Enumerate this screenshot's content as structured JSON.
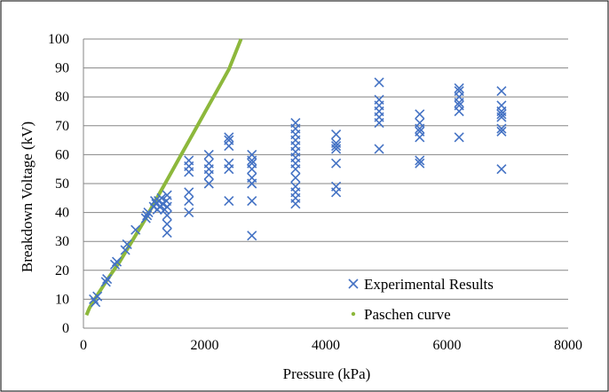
{
  "chart_data": {
    "type": "scatter",
    "title": "",
    "xlabel": "Pressure (kPa)",
    "ylabel": "Breakdown Voltage (kV)",
    "xlim": [
      0,
      8000
    ],
    "ylim": [
      0,
      100
    ],
    "x_ticks": [
      0,
      2000,
      4000,
      6000,
      8000
    ],
    "y_ticks": [
      0,
      10,
      20,
      30,
      40,
      50,
      60,
      70,
      80,
      90,
      100
    ],
    "grid": "horizontal",
    "legend_position": "bottom-right",
    "series": [
      {
        "name": "Experimental Results",
        "marker": "x",
        "color": "#4472C4",
        "points": [
          [
            170,
            10
          ],
          [
            200,
            9
          ],
          [
            230,
            11
          ],
          [
            370,
            16
          ],
          [
            390,
            17
          ],
          [
            520,
            22
          ],
          [
            550,
            23
          ],
          [
            690,
            27
          ],
          [
            720,
            29
          ],
          [
            860,
            34
          ],
          [
            1030,
            38
          ],
          [
            1050,
            39
          ],
          [
            1070,
            40
          ],
          [
            1160,
            42
          ],
          [
            1180,
            44
          ],
          [
            1200,
            43
          ],
          [
            1220,
            41
          ],
          [
            1240,
            44
          ],
          [
            1260,
            42
          ],
          [
            1290,
            45
          ],
          [
            1310,
            43
          ],
          [
            1340,
            41
          ],
          [
            1370,
            44
          ],
          [
            1380,
            46
          ],
          [
            1380,
            42
          ],
          [
            1380,
            39
          ],
          [
            1380,
            36
          ],
          [
            1380,
            33
          ],
          [
            1740,
            58
          ],
          [
            1740,
            56
          ],
          [
            1740,
            54
          ],
          [
            1740,
            47
          ],
          [
            1740,
            44
          ],
          [
            1740,
            40
          ],
          [
            2070,
            60
          ],
          [
            2070,
            57
          ],
          [
            2070,
            55
          ],
          [
            2070,
            53
          ],
          [
            2070,
            50
          ],
          [
            2400,
            66
          ],
          [
            2400,
            65
          ],
          [
            2400,
            63
          ],
          [
            2400,
            57
          ],
          [
            2400,
            55
          ],
          [
            2400,
            44
          ],
          [
            2780,
            60
          ],
          [
            2780,
            58
          ],
          [
            2780,
            57
          ],
          [
            2780,
            55
          ],
          [
            2780,
            52
          ],
          [
            2780,
            50
          ],
          [
            2780,
            44
          ],
          [
            2780,
            32
          ],
          [
            3500,
            71
          ],
          [
            3500,
            69
          ],
          [
            3500,
            67
          ],
          [
            3500,
            65
          ],
          [
            3500,
            63
          ],
          [
            3500,
            61
          ],
          [
            3500,
            59
          ],
          [
            3500,
            57
          ],
          [
            3500,
            55
          ],
          [
            3500,
            52
          ],
          [
            3500,
            49
          ],
          [
            3500,
            47
          ],
          [
            3500,
            45
          ],
          [
            3500,
            43
          ],
          [
            4170,
            67
          ],
          [
            4170,
            64
          ],
          [
            4170,
            63
          ],
          [
            4170,
            62
          ],
          [
            4170,
            57
          ],
          [
            4170,
            49
          ],
          [
            4170,
            47
          ],
          [
            4880,
            85
          ],
          [
            4880,
            79
          ],
          [
            4880,
            77
          ],
          [
            4880,
            75
          ],
          [
            4880,
            73
          ],
          [
            4880,
            71
          ],
          [
            4880,
            62
          ],
          [
            5550,
            74
          ],
          [
            5550,
            71
          ],
          [
            5550,
            69
          ],
          [
            5550,
            68
          ],
          [
            5550,
            66
          ],
          [
            5550,
            58
          ],
          [
            5550,
            57
          ],
          [
            6200,
            83
          ],
          [
            6200,
            82
          ],
          [
            6200,
            80
          ],
          [
            6200,
            78
          ],
          [
            6200,
            77
          ],
          [
            6200,
            75
          ],
          [
            6200,
            66
          ],
          [
            6900,
            82
          ],
          [
            6900,
            77
          ],
          [
            6900,
            75
          ],
          [
            6900,
            74
          ],
          [
            6900,
            73
          ],
          [
            6900,
            69
          ],
          [
            6900,
            68
          ],
          [
            6900,
            55
          ]
        ]
      },
      {
        "name": "Paschen curve",
        "marker": "line",
        "color": "#8DB83C",
        "points": [
          [
            50,
            4.5
          ],
          [
            100,
            7
          ],
          [
            200,
            10.5
          ],
          [
            400,
            17
          ],
          [
            600,
            23
          ],
          [
            800,
            30
          ],
          [
            1000,
            37
          ],
          [
            1200,
            44.5
          ],
          [
            1400,
            52
          ],
          [
            1600,
            59.5
          ],
          [
            1800,
            67
          ],
          [
            2000,
            74.5
          ],
          [
            2200,
            82
          ],
          [
            2400,
            89.5
          ],
          [
            2600,
            100
          ]
        ]
      }
    ]
  }
}
